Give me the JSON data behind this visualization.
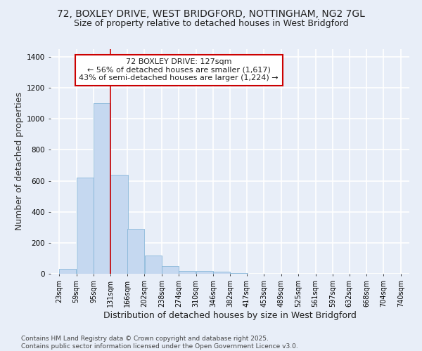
{
  "title_line1": "72, BOXLEY DRIVE, WEST BRIDGFORD, NOTTINGHAM, NG2 7GL",
  "title_line2": "Size of property relative to detached houses in West Bridgford",
  "xlabel": "Distribution of detached houses by size in West Bridgford",
  "ylabel": "Number of detached properties",
  "bins": [
    23,
    59,
    95,
    131,
    166,
    202,
    238,
    274,
    310,
    346,
    382,
    417,
    453,
    489,
    525,
    561,
    597,
    632,
    668,
    704,
    740
  ],
  "counts": [
    30,
    620,
    1100,
    640,
    290,
    120,
    50,
    20,
    20,
    15,
    5,
    0,
    0,
    0,
    0,
    0,
    0,
    0,
    0,
    0
  ],
  "bar_color": "#c5d8f0",
  "bar_edge_color": "#7aafd4",
  "red_line_x": 131,
  "annotation_text_line1": "72 BOXLEY DRIVE: 127sqm",
  "annotation_text_line2": "← 56% of detached houses are smaller (1,617)",
  "annotation_text_line3": "43% of semi-detached houses are larger (1,224) →",
  "annotation_box_color": "#ffffff",
  "annotation_border_color": "#cc0000",
  "ylim": [
    0,
    1450
  ],
  "background_color": "#e8eef8",
  "grid_color": "#ffffff",
  "footer_line1": "Contains HM Land Registry data © Crown copyright and database right 2025.",
  "footer_line2": "Contains public sector information licensed under the Open Government Licence v3.0.",
  "title_fontsize": 10,
  "subtitle_fontsize": 9,
  "axis_label_fontsize": 9,
  "tick_fontsize": 7,
  "annotation_fontsize": 8,
  "footer_fontsize": 6.5
}
